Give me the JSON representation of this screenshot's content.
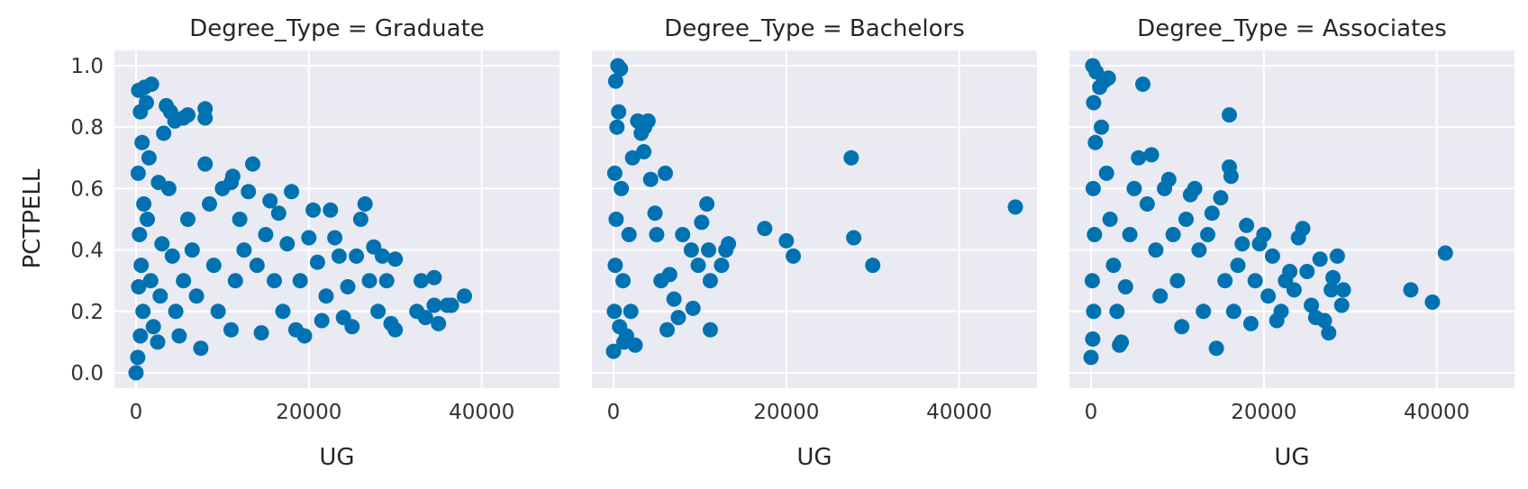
{
  "chart_data": [
    {
      "type": "scatter",
      "title": "Degree_Type = Graduate",
      "xlabel": "UG",
      "ylabel": "PCTPELL",
      "xlim": [
        -2500,
        49000
      ],
      "ylim": [
        -0.05,
        1.05
      ],
      "xticks": [
        0,
        20000,
        40000
      ],
      "xtick_labels": [
        "0",
        "20000",
        "40000"
      ],
      "yticks": [
        0.0,
        0.2,
        0.4,
        0.6,
        0.8,
        1.0
      ],
      "ytick_labels": [
        "0.0",
        "0.2",
        "0.4",
        "0.6",
        "0.8",
        "1.0"
      ],
      "grid": true,
      "marker_color": "#0072b2",
      "points": [
        [
          0,
          0.0
        ],
        [
          200,
          0.05
        ],
        [
          500,
          0.12
        ],
        [
          800,
          0.2
        ],
        [
          300,
          0.28
        ],
        [
          600,
          0.35
        ],
        [
          400,
          0.45
        ],
        [
          900,
          0.55
        ],
        [
          250,
          0.65
        ],
        [
          700,
          0.75
        ],
        [
          500,
          0.85
        ],
        [
          300,
          0.92
        ],
        [
          1000,
          0.93
        ],
        [
          1800,
          0.94
        ],
        [
          1200,
          0.88
        ],
        [
          1500,
          0.7
        ],
        [
          1300,
          0.5
        ],
        [
          1700,
          0.3
        ],
        [
          2000,
          0.15
        ],
        [
          2500,
          0.1
        ],
        [
          2800,
          0.25
        ],
        [
          3000,
          0.42
        ],
        [
          2600,
          0.62
        ],
        [
          3200,
          0.78
        ],
        [
          3500,
          0.87
        ],
        [
          4000,
          0.85
        ],
        [
          4500,
          0.82
        ],
        [
          5500,
          0.83
        ],
        [
          6000,
          0.84
        ],
        [
          8000,
          0.86
        ],
        [
          8000,
          0.83
        ],
        [
          3800,
          0.6
        ],
        [
          4200,
          0.38
        ],
        [
          4600,
          0.2
        ],
        [
          5000,
          0.12
        ],
        [
          5500,
          0.3
        ],
        [
          6000,
          0.5
        ],
        [
          6500,
          0.4
        ],
        [
          7000,
          0.25
        ],
        [
          7500,
          0.08
        ],
        [
          8000,
          0.68
        ],
        [
          8500,
          0.55
        ],
        [
          9000,
          0.35
        ],
        [
          9500,
          0.2
        ],
        [
          10000,
          0.6
        ],
        [
          11000,
          0.62
        ],
        [
          11200,
          0.64
        ],
        [
          12000,
          0.5
        ],
        [
          12500,
          0.4
        ],
        [
          11500,
          0.3
        ],
        [
          11000,
          0.14
        ],
        [
          13000,
          0.59
        ],
        [
          13500,
          0.68
        ],
        [
          14000,
          0.35
        ],
        [
          14500,
          0.13
        ],
        [
          15000,
          0.45
        ],
        [
          15500,
          0.56
        ],
        [
          16000,
          0.3
        ],
        [
          16500,
          0.52
        ],
        [
          17000,
          0.2
        ],
        [
          17500,
          0.42
        ],
        [
          18000,
          0.59
        ],
        [
          18500,
          0.14
        ],
        [
          19000,
          0.3
        ],
        [
          19500,
          0.12
        ],
        [
          20000,
          0.44
        ],
        [
          20500,
          0.53
        ],
        [
          21000,
          0.36
        ],
        [
          21500,
          0.17
        ],
        [
          22000,
          0.25
        ],
        [
          22500,
          0.53
        ],
        [
          23000,
          0.44
        ],
        [
          23500,
          0.38
        ],
        [
          24000,
          0.18
        ],
        [
          24500,
          0.28
        ],
        [
          25000,
          0.15
        ],
        [
          25500,
          0.38
        ],
        [
          26000,
          0.5
        ],
        [
          26500,
          0.55
        ],
        [
          27000,
          0.3
        ],
        [
          27500,
          0.41
        ],
        [
          28000,
          0.2
        ],
        [
          28500,
          0.38
        ],
        [
          29000,
          0.3
        ],
        [
          29500,
          0.16
        ],
        [
          30000,
          0.14
        ],
        [
          30000,
          0.37
        ],
        [
          32500,
          0.2
        ],
        [
          33000,
          0.3
        ],
        [
          33500,
          0.18
        ],
        [
          34500,
          0.31
        ],
        [
          34500,
          0.22
        ],
        [
          35000,
          0.16
        ],
        [
          36000,
          0.22
        ],
        [
          36500,
          0.22
        ],
        [
          38000,
          0.25
        ]
      ]
    },
    {
      "type": "scatter",
      "title": "Degree_Type = Bachelors",
      "xlabel": "UG",
      "ylabel": "",
      "xlim": [
        -2500,
        49000
      ],
      "ylim": [
        -0.05,
        1.05
      ],
      "xticks": [
        0,
        20000,
        40000
      ],
      "xtick_labels": [
        "0",
        "20000",
        "40000"
      ],
      "yticks": [
        0.0,
        0.2,
        0.4,
        0.6,
        0.8,
        1.0
      ],
      "ytick_labels": [
        "",
        "",
        "",
        "",
        "",
        ""
      ],
      "grid": true,
      "marker_color": "#0072b2",
      "points": [
        [
          0,
          0.07
        ],
        [
          100,
          0.2
        ],
        [
          200,
          0.35
        ],
        [
          300,
          0.5
        ],
        [
          150,
          0.65
        ],
        [
          400,
          0.8
        ],
        [
          250,
          0.95
        ],
        [
          500,
          1.0
        ],
        [
          800,
          0.99
        ],
        [
          600,
          0.85
        ],
        [
          900,
          0.6
        ],
        [
          1100,
          0.3
        ],
        [
          700,
          0.15
        ],
        [
          1200,
          0.1
        ],
        [
          1500,
          0.12
        ],
        [
          2000,
          0.2
        ],
        [
          2500,
          0.09
        ],
        [
          1800,
          0.45
        ],
        [
          2200,
          0.7
        ],
        [
          2800,
          0.82
        ],
        [
          3200,
          0.78
        ],
        [
          3500,
          0.72
        ],
        [
          3600,
          0.8
        ],
        [
          4000,
          0.82
        ],
        [
          4300,
          0.63
        ],
        [
          4800,
          0.52
        ],
        [
          5000,
          0.45
        ],
        [
          5500,
          0.3
        ],
        [
          6000,
          0.65
        ],
        [
          6200,
          0.14
        ],
        [
          6500,
          0.32
        ],
        [
          7000,
          0.24
        ],
        [
          7500,
          0.18
        ],
        [
          8000,
          0.45
        ],
        [
          9000,
          0.4
        ],
        [
          9200,
          0.21
        ],
        [
          9800,
          0.35
        ],
        [
          10200,
          0.49
        ],
        [
          10800,
          0.55
        ],
        [
          11000,
          0.4
        ],
        [
          11200,
          0.3
        ],
        [
          11200,
          0.14
        ],
        [
          12500,
          0.35
        ],
        [
          13000,
          0.4
        ],
        [
          13300,
          0.42
        ],
        [
          17500,
          0.47
        ],
        [
          20000,
          0.43
        ],
        [
          20800,
          0.38
        ],
        [
          27500,
          0.7
        ],
        [
          27800,
          0.44
        ],
        [
          30000,
          0.35
        ],
        [
          46500,
          0.54
        ]
      ]
    },
    {
      "type": "scatter",
      "title": "Degree_Type = Associates",
      "xlabel": "UG",
      "ylabel": "",
      "xlim": [
        -2500,
        49000
      ],
      "ylim": [
        -0.05,
        1.05
      ],
      "xticks": [
        0,
        20000,
        40000
      ],
      "xtick_labels": [
        "0",
        "20000",
        "40000"
      ],
      "yticks": [
        0.0,
        0.2,
        0.4,
        0.6,
        0.8,
        1.0
      ],
      "ytick_labels": [
        "",
        "",
        "",
        "",
        "",
        ""
      ],
      "grid": true,
      "marker_color": "#0072b2",
      "points": [
        [
          0,
          0.05
        ],
        [
          200,
          0.11
        ],
        [
          300,
          0.2
        ],
        [
          150,
          0.3
        ],
        [
          400,
          0.45
        ],
        [
          250,
          0.6
        ],
        [
          500,
          0.75
        ],
        [
          300,
          0.88
        ],
        [
          200,
          1.0
        ],
        [
          600,
          0.98
        ],
        [
          1000,
          0.93
        ],
        [
          1500,
          0.95
        ],
        [
          2000,
          0.96
        ],
        [
          1200,
          0.8
        ],
        [
          1800,
          0.65
        ],
        [
          2200,
          0.5
        ],
        [
          2600,
          0.35
        ],
        [
          3000,
          0.2
        ],
        [
          3500,
          0.1
        ],
        [
          3300,
          0.09
        ],
        [
          4000,
          0.28
        ],
        [
          4500,
          0.45
        ],
        [
          5000,
          0.6
        ],
        [
          5500,
          0.7
        ],
        [
          6000,
          0.94
        ],
        [
          6500,
          0.55
        ],
        [
          7000,
          0.71
        ],
        [
          7500,
          0.4
        ],
        [
          8000,
          0.25
        ],
        [
          8500,
          0.6
        ],
        [
          9000,
          0.63
        ],
        [
          9500,
          0.45
        ],
        [
          10000,
          0.3
        ],
        [
          10500,
          0.15
        ],
        [
          11000,
          0.5
        ],
        [
          11500,
          0.58
        ],
        [
          12000,
          0.6
        ],
        [
          12500,
          0.4
        ],
        [
          13000,
          0.2
        ],
        [
          13500,
          0.45
        ],
        [
          14000,
          0.52
        ],
        [
          14500,
          0.08
        ],
        [
          15000,
          0.57
        ],
        [
          15500,
          0.3
        ],
        [
          16000,
          0.84
        ],
        [
          16000,
          0.67
        ],
        [
          16200,
          0.64
        ],
        [
          16500,
          0.2
        ],
        [
          17000,
          0.35
        ],
        [
          17500,
          0.42
        ],
        [
          18000,
          0.48
        ],
        [
          18500,
          0.16
        ],
        [
          19000,
          0.3
        ],
        [
          19500,
          0.42
        ],
        [
          20000,
          0.45
        ],
        [
          20500,
          0.25
        ],
        [
          21000,
          0.38
        ],
        [
          21500,
          0.17
        ],
        [
          22000,
          0.2
        ],
        [
          22500,
          0.3
        ],
        [
          23000,
          0.33
        ],
        [
          23500,
          0.27
        ],
        [
          24000,
          0.44
        ],
        [
          24500,
          0.47
        ],
        [
          25000,
          0.33
        ],
        [
          25500,
          0.22
        ],
        [
          26000,
          0.18
        ],
        [
          26500,
          0.37
        ],
        [
          27000,
          0.17
        ],
        [
          27500,
          0.13
        ],
        [
          27800,
          0.27
        ],
        [
          28000,
          0.31
        ],
        [
          28500,
          0.38
        ],
        [
          29000,
          0.22
        ],
        [
          29200,
          0.27
        ],
        [
          37000,
          0.27
        ],
        [
          39500,
          0.23
        ],
        [
          41000,
          0.39
        ]
      ]
    }
  ]
}
